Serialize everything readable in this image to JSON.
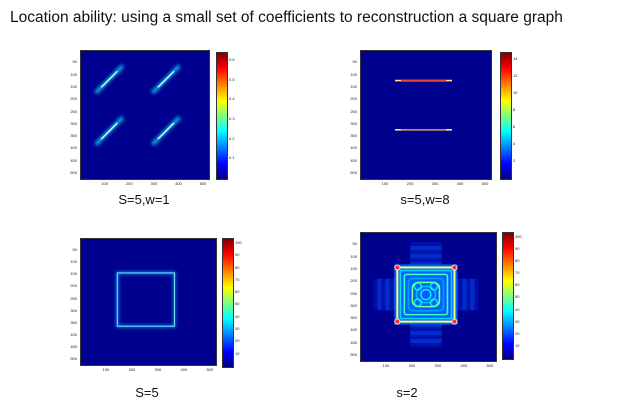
{
  "title": "Location ability: using a small set of coefficients to reconstruction a square graph",
  "chart_data": [
    {
      "type": "heatmap",
      "caption": "S=5,w=1",
      "x_ticks": [
        "100",
        "200",
        "300",
        "400",
        "500"
      ],
      "y_ticks": [
        "50",
        "100",
        "150",
        "200",
        "250",
        "300",
        "350",
        "400",
        "450",
        "500"
      ],
      "colorbar_ticks": [
        "0.1",
        "0.2",
        "0.3",
        "0.4",
        "0.5",
        "0.6"
      ],
      "features": [
        {
          "shape": "diagonal-streak",
          "x": [
            60,
            170
          ],
          "y": [
            60,
            170
          ]
        },
        {
          "shape": "diagonal-streak",
          "x": [
            290,
            400
          ],
          "y": [
            60,
            170
          ]
        },
        {
          "shape": "diagonal-streak",
          "x": [
            60,
            170
          ],
          "y": [
            270,
            380
          ]
        },
        {
          "shape": "diagonal-streak",
          "x": [
            290,
            400
          ],
          "y": [
            270,
            380
          ]
        }
      ]
    },
    {
      "type": "heatmap",
      "caption": "s=5,w=8",
      "x_ticks": [
        "100",
        "200",
        "300",
        "400",
        "500"
      ],
      "y_ticks": [
        "50",
        "100",
        "150",
        "200",
        "250",
        "300",
        "350",
        "400",
        "450",
        "500"
      ],
      "colorbar_ticks": [
        "2",
        "4",
        "6",
        "8",
        "10",
        "12",
        "14"
      ],
      "features": [
        {
          "shape": "horizontal-line",
          "x": [
            120,
            380
          ],
          "y": 120
        },
        {
          "shape": "horizontal-line",
          "x": [
            120,
            380
          ],
          "y": 320
        }
      ]
    },
    {
      "type": "heatmap",
      "caption": "S=5",
      "x_ticks": [
        "100",
        "200",
        "300",
        "400",
        "500"
      ],
      "y_ticks": [
        "50",
        "100",
        "150",
        "200",
        "250",
        "300",
        "350",
        "400",
        "450",
        "500"
      ],
      "colorbar_ticks": [
        "10",
        "20",
        "30",
        "40",
        "50",
        "60",
        "70",
        "80",
        "90",
        "100"
      ],
      "features": [
        {
          "shape": "square-outline",
          "x": [
            140,
            360
          ],
          "y": [
            140,
            360
          ]
        }
      ]
    },
    {
      "type": "heatmap",
      "caption": "s=2",
      "x_ticks": [
        "100",
        "200",
        "300",
        "400",
        "500"
      ],
      "y_ticks": [
        "50",
        "100",
        "150",
        "200",
        "250",
        "300",
        "350",
        "400",
        "450",
        "500"
      ],
      "colorbar_ticks": [
        "10",
        "20",
        "30",
        "40",
        "50",
        "60",
        "70",
        "80",
        "90",
        "100"
      ],
      "features": [
        {
          "shape": "square-outline-with-ringing",
          "x": [
            140,
            360
          ],
          "y": [
            140,
            360
          ]
        }
      ]
    }
  ]
}
